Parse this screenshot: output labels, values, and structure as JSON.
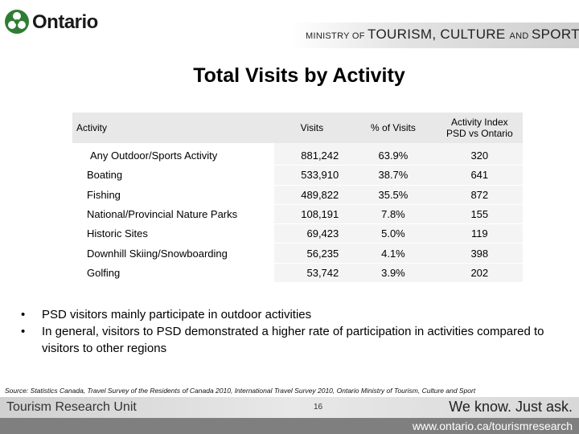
{
  "header": {
    "logo_text": "Ontario",
    "ministry": {
      "part1": "MINISTRY OF ",
      "part2": "TOURISM",
      "part3": ", ",
      "part4": "CULTURE ",
      "part5": "AND ",
      "part6": "SPORT"
    }
  },
  "title": "Total Visits by Activity",
  "table": {
    "headers": {
      "activity": "Activity",
      "visits": "Visits",
      "pct": "% of Visits",
      "index_line1": "Activity Index",
      "index_line2": "PSD vs Ontario"
    },
    "rows": [
      {
        "activity": "Any Outdoor/Sports Activity",
        "visits": "881,242",
        "pct": "63.9%",
        "index": "320"
      },
      {
        "activity": "Boating",
        "visits": "533,910",
        "pct": "38.7%",
        "index": "641"
      },
      {
        "activity": "Fishing",
        "visits": "489,822",
        "pct": "35.5%",
        "index": "872"
      },
      {
        "activity": "National/Provincial Nature Parks",
        "visits": "108,191",
        "pct": "7.8%",
        "index": "155"
      },
      {
        "activity": "Historic Sites",
        "visits": "69,423",
        "pct": "5.0%",
        "index": "119"
      },
      {
        "activity": "Downhill Skiing/Snowboarding",
        "visits": "56,235",
        "pct": "4.1%",
        "index": "398"
      },
      {
        "activity": "Golfing",
        "visits": "53,742",
        "pct": "3.9%",
        "index": "202"
      }
    ]
  },
  "bullets": [
    "PSD visitors mainly participate in outdoor activities",
    "In general, visitors to PSD demonstrated a higher rate of participation in activities compared to visitors to other regions"
  ],
  "bullet_glyph": "•",
  "source": "Source: Statistics Canada, Travel Survey of the Residents of Canada 2010, International Travel Survey 2010, Ontario Ministry of Tourism, Culture and Sport",
  "footer": {
    "left": "Tourism Research Unit",
    "page_number": "16",
    "right": "We know. Just ask.",
    "url": "www.ontario.ca/tourismresearch"
  },
  "colors": {
    "logo_green": "#2e7d32",
    "url_band": "#7f7f7f"
  },
  "icons": {
    "logo": "trillium-logo-icon"
  }
}
